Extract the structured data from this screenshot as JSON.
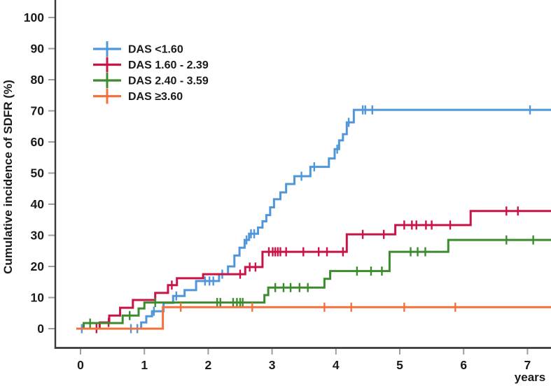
{
  "chart_data": {
    "type": "line",
    "subtype": "cumulative-incidence-step-curves",
    "title": "",
    "ylabel": "Cumulative incidence of SDFR (%)",
    "xlabel": "years",
    "xlim": [
      0,
      7.37
    ],
    "ylim": [
      0,
      100
    ],
    "x_ticks": [
      0,
      1,
      2,
      3,
      4,
      5,
      6,
      7
    ],
    "y_ticks": [
      0,
      10,
      20,
      30,
      40,
      50,
      60,
      70,
      80,
      90,
      100
    ],
    "grid": false,
    "legend_position": "upper-left-inside",
    "axis_color": "#3a3a3a",
    "tick_color": "#9f9f9f",
    "label_color": "#1a1a1a",
    "curve_end": 7.37,
    "series": [
      {
        "id": "das-lt-1-60",
        "name": "DAS <1.60",
        "color": "#4F97DA",
        "steps": [
          [
            0,
            0
          ],
          [
            0.95,
            2
          ],
          [
            1.03,
            4
          ],
          [
            1.12,
            5.6
          ],
          [
            1.3,
            8.3
          ],
          [
            1.45,
            10.5
          ],
          [
            1.63,
            12.4
          ],
          [
            1.81,
            15.3
          ],
          [
            2.17,
            17.5
          ],
          [
            2.31,
            20
          ],
          [
            2.41,
            23.5
          ],
          [
            2.49,
            26
          ],
          [
            2.57,
            28.5
          ],
          [
            2.64,
            30.5
          ],
          [
            2.78,
            32.5
          ],
          [
            2.85,
            34.5
          ],
          [
            2.91,
            36.5
          ],
          [
            2.97,
            39
          ],
          [
            3.03,
            41.6
          ],
          [
            3.13,
            43.8
          ],
          [
            3.22,
            46.5
          ],
          [
            3.35,
            49
          ],
          [
            3.6,
            52
          ],
          [
            3.89,
            54.7
          ],
          [
            3.98,
            57.7
          ],
          [
            4.05,
            60.5
          ],
          [
            4.11,
            62.5
          ],
          [
            4.17,
            66.3
          ],
          [
            4.28,
            70.3
          ]
        ],
        "censors": [
          0.02,
          0.79,
          0.89,
          1.15,
          1.5,
          1.95,
          2.02,
          2.08,
          2.22,
          2.6,
          2.67,
          2.72,
          3.46,
          3.66,
          4.02,
          4.2,
          4.42,
          4.46,
          4.57,
          7.04
        ]
      },
      {
        "id": "das-1-60-2-39",
        "name": "DAS 1.60 - 2.39",
        "color": "#C81446",
        "steps": [
          [
            0,
            0
          ],
          [
            0.3,
            2
          ],
          [
            0.45,
            4.2
          ],
          [
            0.62,
            6.7
          ],
          [
            0.82,
            9.2
          ],
          [
            1.17,
            11.5
          ],
          [
            1.37,
            14
          ],
          [
            1.51,
            16.2
          ],
          [
            1.92,
            17.5
          ],
          [
            2.58,
            19.8
          ],
          [
            2.85,
            24.7
          ],
          [
            4.17,
            30.3
          ],
          [
            4.93,
            33.3
          ],
          [
            6.11,
            37.8
          ]
        ],
        "censors": [
          0.25,
          0.44,
          1.43,
          2.5,
          2.65,
          2.74,
          2.95,
          3.01,
          3.05,
          3.09,
          3.13,
          3.22,
          3.49,
          3.73,
          3.86,
          4.11,
          4.42,
          4.75,
          5.07,
          5.19,
          5.26,
          5.41,
          5.5,
          5.79,
          6.67,
          6.85
        ]
      },
      {
        "id": "das-2-40-3-59",
        "name": "DAS 2.40 - 3.59",
        "color": "#3C8C2F",
        "steps": [
          [
            0,
            0
          ],
          [
            0.05,
            1.8
          ],
          [
            0.66,
            4.2
          ],
          [
            0.91,
            6.5
          ],
          [
            1.0,
            8.4
          ],
          [
            2.88,
            10.8
          ],
          [
            2.94,
            13.2
          ],
          [
            3.82,
            16.0
          ],
          [
            3.91,
            18.5
          ],
          [
            4.84,
            24.7
          ],
          [
            5.76,
            28.5
          ]
        ],
        "censors": [
          0.15,
          0.77,
          1.17,
          2.14,
          2.19,
          2.39,
          2.45,
          2.5,
          2.54,
          3.05,
          3.18,
          3.29,
          3.43,
          3.56,
          4.33,
          4.55,
          4.72,
          5.17,
          5.28,
          5.4,
          6.67,
          7.09
        ]
      },
      {
        "id": "das-ge-3-60",
        "name": "DAS ≥3.60",
        "color": "#F2713C",
        "steps": [
          [
            0,
            0
          ],
          [
            1.29,
            6.9
          ]
        ],
        "censors": [
          1.57,
          2.69,
          3.82,
          4.24,
          5.07,
          5.87
        ]
      }
    ]
  }
}
